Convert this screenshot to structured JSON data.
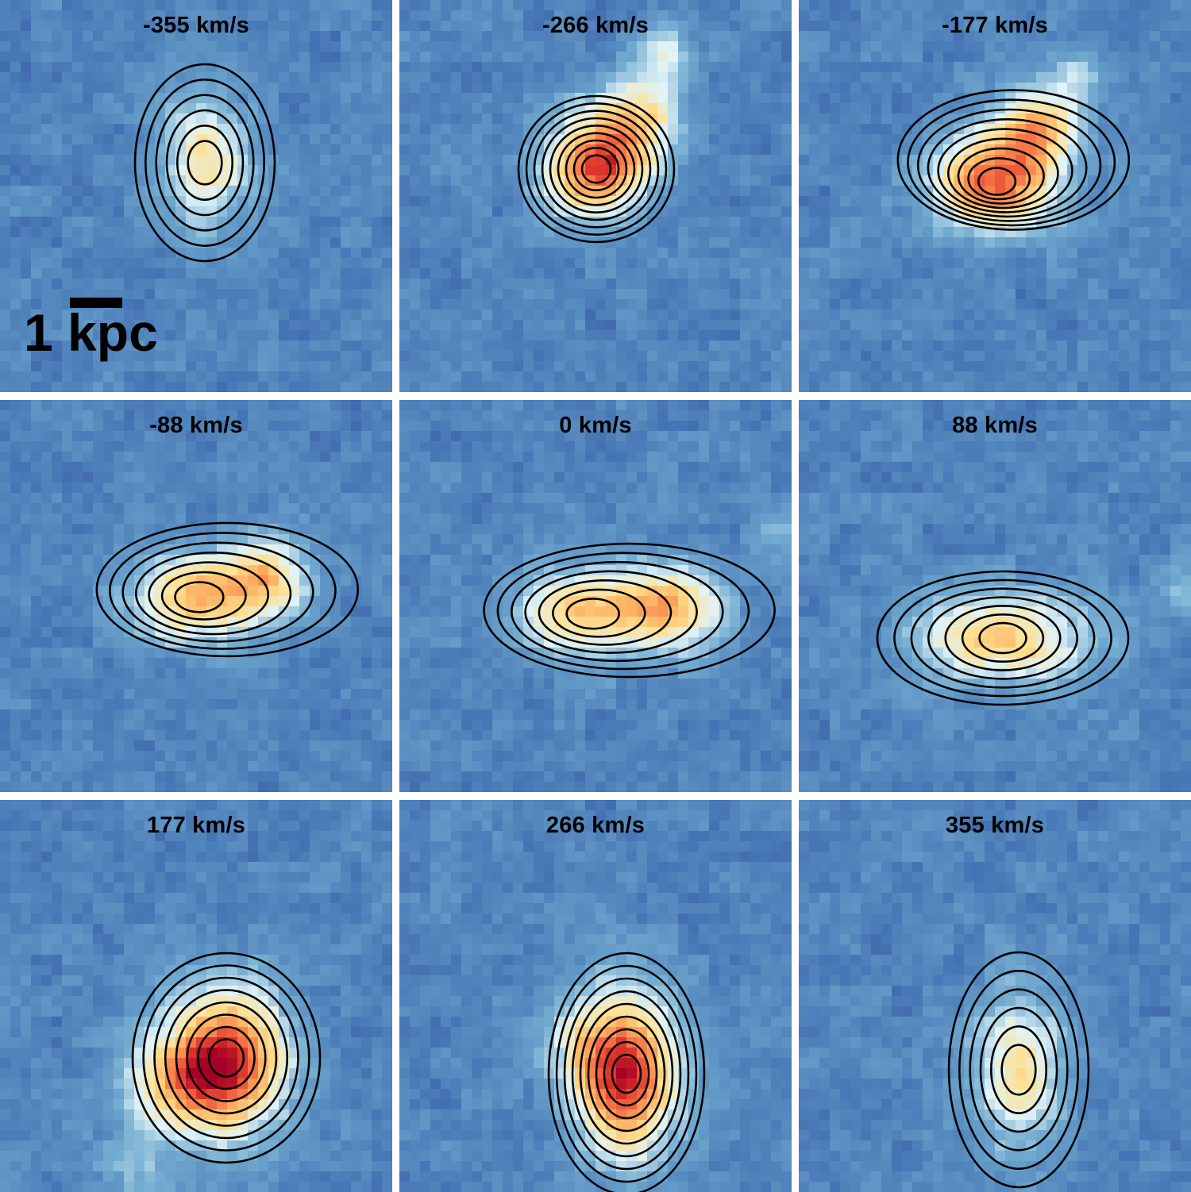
{
  "panels": [
    {
      "label": "-355 km/s",
      "peak": 0.5
    },
    {
      "label": "-266 km/s",
      "peak": 1.0
    },
    {
      "label": "-177 km/s",
      "peak": 0.95
    },
    {
      "label": "-88 km/s",
      "peak": 0.68
    },
    {
      "label": "0 km/s",
      "peak": 0.62
    },
    {
      "label": "88 km/s",
      "peak": 0.63
    },
    {
      "label": "177 km/s",
      "peak": 0.88
    },
    {
      "label": "266 km/s",
      "peak": 0.95
    },
    {
      "label": "355 km/s",
      "peak": 0.52
    }
  ],
  "scale_bar": {
    "label": "1 kpc"
  },
  "colormap": {
    "low": "#313695",
    "mid_low": "#4575b4",
    "mid": "#e0f3f8",
    "mid_high": "#fee090",
    "high": "#a50026"
  },
  "contour_color": "#000000"
}
